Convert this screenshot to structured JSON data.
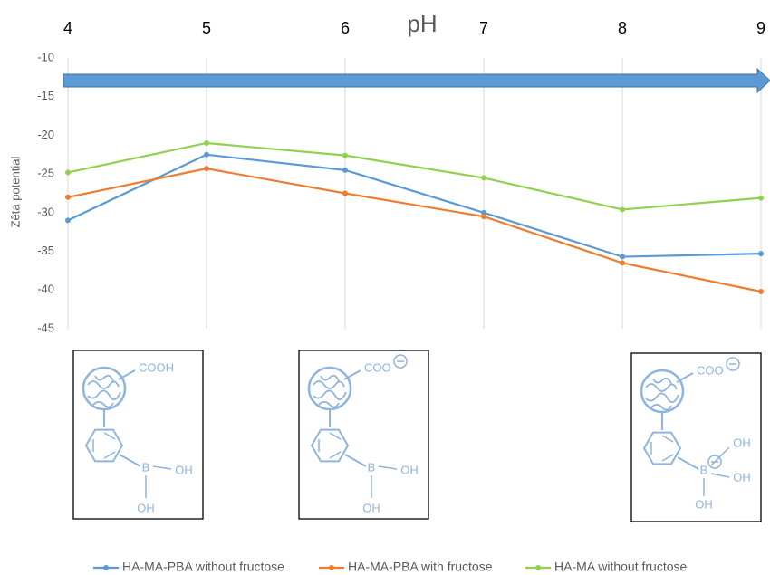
{
  "chart_data": {
    "type": "line",
    "x_label": "pH",
    "y_label": "Zêta potential",
    "x": [
      4,
      5,
      6,
      7,
      8,
      9
    ],
    "xlim": [
      4,
      9
    ],
    "xticks": [
      4,
      5,
      6,
      7,
      8,
      9
    ],
    "ylim": [
      -45,
      -10
    ],
    "yticks": [
      -10,
      -15,
      -20,
      -25,
      -30,
      -35,
      -40,
      -45
    ],
    "grid": true,
    "series": [
      {
        "name": "HA-MA-PBA without fructose",
        "color": "#5b9bd5",
        "values": [
          -31,
          -22.5,
          -24.5,
          -30,
          -35.7,
          -35.3
        ]
      },
      {
        "name": "HA-MA-PBA with fructose",
        "color": "#ed7d31",
        "values": [
          -28,
          -24.3,
          -27.5,
          -30.5,
          -36.5,
          -40.2
        ]
      },
      {
        "name": "HA-MA without fructose",
        "color": "#92d050",
        "values": [
          -24.8,
          -21,
          -22.6,
          -25.5,
          -29.6,
          -28.1
        ]
      }
    ],
    "structures": [
      {
        "acid": "COOH",
        "boron": "B",
        "hydroxyls": [
          "OH",
          "OH"
        ]
      },
      {
        "acid": "COO",
        "boron": "B",
        "hydroxyls": [
          "OH",
          "OH"
        ]
      },
      {
        "acid": "COO",
        "boron": "B",
        "hydroxyls": [
          "OH",
          "OH",
          "OH"
        ]
      }
    ]
  }
}
